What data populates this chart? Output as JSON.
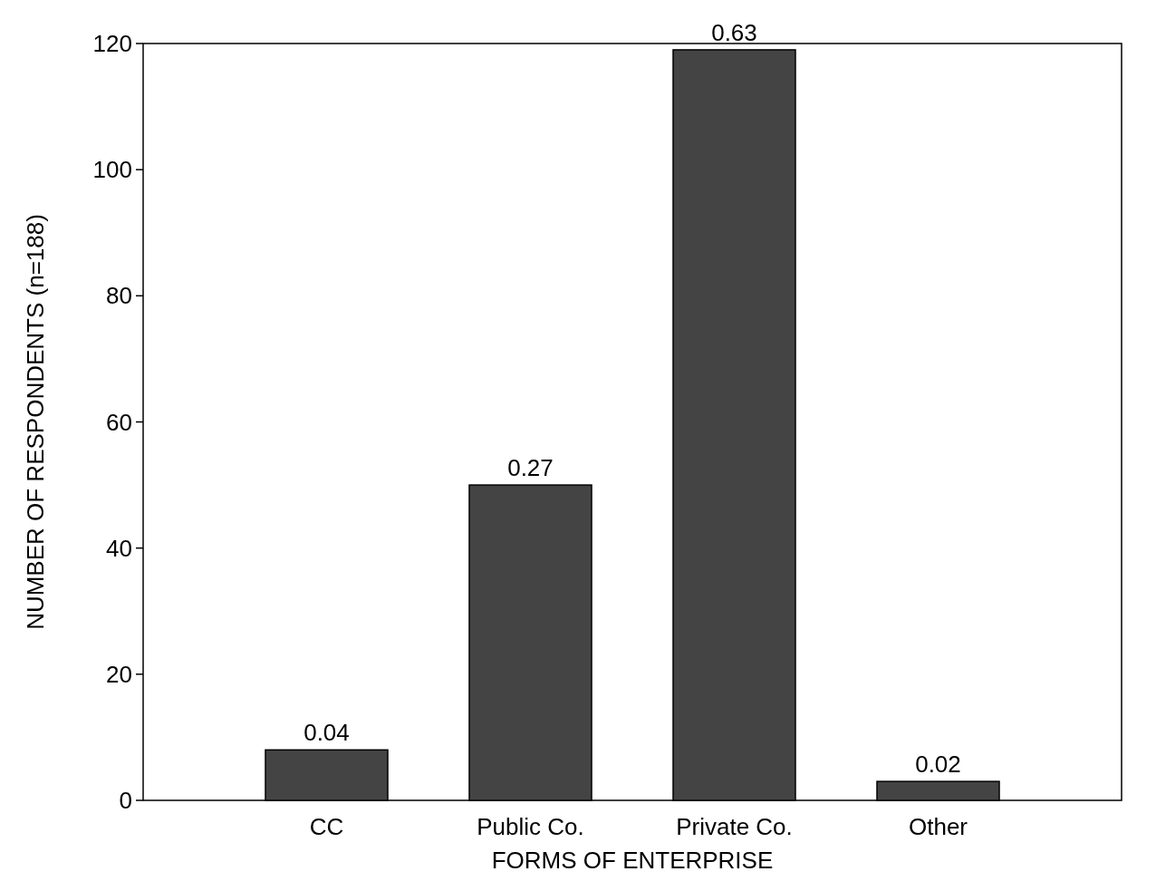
{
  "chart_data": {
    "type": "bar",
    "xlabel": "FORMS OF ENTERPRISE",
    "ylabel": "NUMBER OF RESPONDENTS (n=188)",
    "categories": [
      "CC",
      "Public Co.",
      "Private Co.",
      "Other"
    ],
    "values": [
      8,
      50,
      119,
      3
    ],
    "annotations": [
      {
        "text": "0.04",
        "x": "CC",
        "y": 8
      },
      {
        "text": "0.27",
        "x": "Public Co.",
        "y": 50
      },
      {
        "text": "0.63",
        "x": "Private Co.",
        "y": 119
      },
      {
        "text": "0.02",
        "x": "Other",
        "y": 3
      }
    ],
    "color": "#444444",
    "ylim": [
      0,
      120
    ],
    "yticks": [
      0,
      20,
      40,
      60,
      80,
      100,
      120
    ],
    "grid": false
  }
}
